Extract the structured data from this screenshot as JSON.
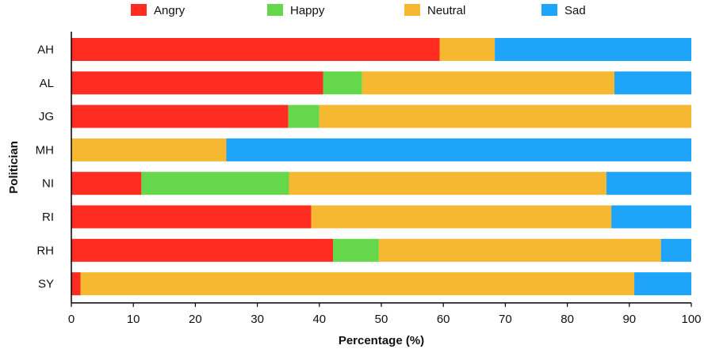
{
  "chart_data": {
    "type": "bar",
    "orientation": "horizontal",
    "stacked": true,
    "title": "",
    "xlabel": "Percentage (%)",
    "ylabel": "Politician",
    "xlim": [
      0,
      100
    ],
    "xticks": [
      0,
      10,
      20,
      30,
      40,
      50,
      60,
      70,
      80,
      90,
      100
    ],
    "categories": [
      "AH",
      "AL",
      "JG",
      "MH",
      "NI",
      "RI",
      "RH",
      "SY"
    ],
    "series": [
      {
        "name": "Angry",
        "color": "#ff2d21",
        "values": [
          59.4,
          40.6,
          35.0,
          0.0,
          11.3,
          38.7,
          42.2,
          1.5
        ]
      },
      {
        "name": "Happy",
        "color": "#65d74a",
        "values": [
          0.0,
          6.3,
          5.0,
          0.0,
          23.8,
          0.0,
          7.4,
          0.0
        ]
      },
      {
        "name": "Neutral",
        "color": "#f6b731",
        "values": [
          8.9,
          40.7,
          60.0,
          25.0,
          51.2,
          48.4,
          45.5,
          89.3
        ]
      },
      {
        "name": "Sad",
        "color": "#1ea4f8",
        "values": [
          31.7,
          12.4,
          0.0,
          75.0,
          13.7,
          12.9,
          4.9,
          9.2
        ]
      }
    ],
    "grid": false,
    "legend_position": "top"
  }
}
